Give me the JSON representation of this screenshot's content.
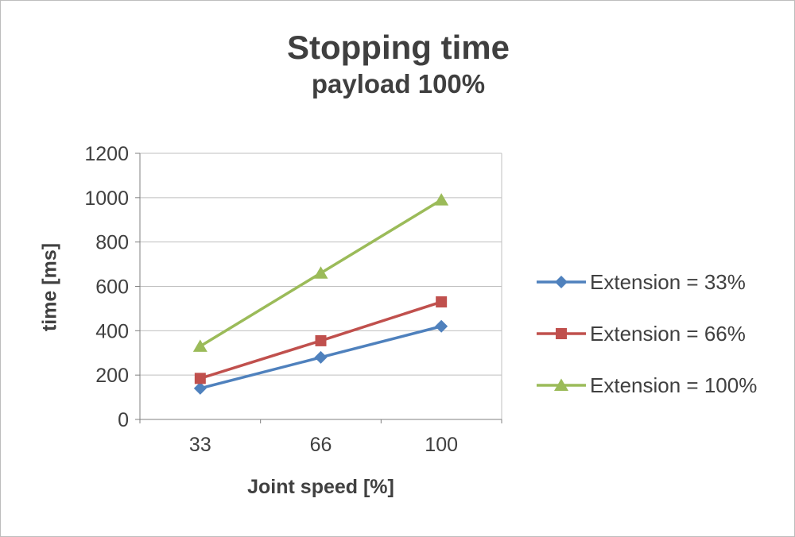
{
  "page": {
    "background": "#ffffff",
    "border_color": "#bdbdbd"
  },
  "chart_data": {
    "type": "line",
    "title": "Stopping time",
    "subtitle": "payload 100%",
    "xlabel": "Joint speed [%]",
    "ylabel": "time [ms]",
    "categories": [
      "33",
      "66",
      "100"
    ],
    "x": [
      33,
      66,
      100
    ],
    "series": [
      {
        "name": "Extension = 33%",
        "values": [
          140,
          280,
          420
        ],
        "color": "#4F81BD",
        "marker": "diamond"
      },
      {
        "name": "Extension = 66%",
        "values": [
          185,
          355,
          530
        ],
        "color": "#C0504D",
        "marker": "square"
      },
      {
        "name": "Extension = 100%",
        "values": [
          330,
          660,
          990
        ],
        "color": "#9BBB59",
        "marker": "triangle"
      }
    ],
    "ylim": [
      0,
      1200
    ],
    "yticks": [
      0,
      200,
      400,
      600,
      800,
      1000,
      1200
    ],
    "grid": "horizontal",
    "legend_position": "right",
    "colors": {
      "grid": "#bfbfbf",
      "axis": "#808080",
      "text": "#404040"
    }
  }
}
